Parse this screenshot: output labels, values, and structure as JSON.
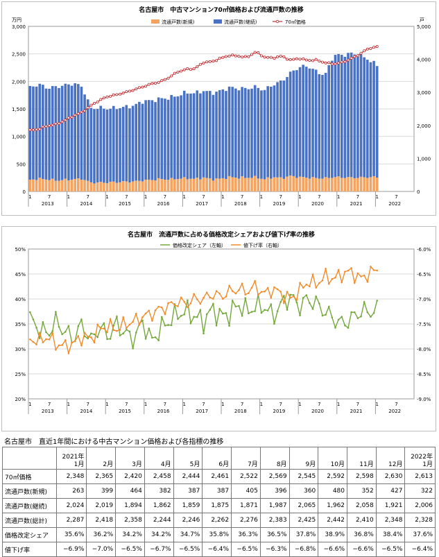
{
  "chart_data": [
    {
      "type": "bar",
      "title": "名古屋市　中古マンション70㎡価格および流通戸数の推移",
      "ylabel_left": "万円",
      "ylabel_right": "戸",
      "ylim_left": [
        0,
        3000
      ],
      "ylim_right": [
        0,
        5000
      ],
      "left_ticks": [
        "0",
        "500",
        "1,000",
        "1,500",
        "2,000",
        "2,500",
        "3,000"
      ],
      "right_ticks": [
        "0",
        "1,000",
        "2,000",
        "3,000",
        "4,000",
        "5,000"
      ],
      "x_month_labels": [
        "1",
        "7",
        "1",
        "7",
        "1",
        "7",
        "1",
        "7",
        "1",
        "7",
        "1",
        "7",
        "1",
        "7",
        "1",
        "7",
        "1",
        "7",
        "1",
        "7"
      ],
      "x_year_labels": [
        "2013",
        "2014",
        "2015",
        "2016",
        "2017",
        "2018",
        "2019",
        "2020",
        "2021",
        "2022"
      ],
      "legend": [
        "流通戸数(新規)",
        "流通戸数(継続)",
        "70㎡価格"
      ],
      "legend_position": "top-center",
      "colors": {
        "new": "#f4a460",
        "continuing": "#4a72c4",
        "price": "#c0282d"
      },
      "price_anchors": [
        1850,
        1890,
        1990,
        2030,
        2150,
        2290,
        2400,
        2600,
        2760,
        2880,
        2930,
        3000,
        3080,
        3170,
        3260,
        3320,
        3450,
        3620,
        3700,
        3720,
        3910,
        3930,
        4040,
        4120,
        4100,
        4060,
        4230,
        4070,
        4040,
        4100,
        3980,
        4030,
        3970,
        3980,
        3900,
        3860,
        3910,
        4020,
        4160,
        4330,
        4380
      ],
      "continuing_anchors": [
        1680,
        1720,
        1660,
        1700,
        1720,
        1740,
        1680,
        1350,
        1360,
        1340,
        1350,
        1360,
        1380,
        1440,
        1440,
        1460,
        1480,
        1510,
        1560,
        1560,
        1580,
        1570,
        1600,
        1630,
        1620,
        1620,
        1640,
        1620,
        1680,
        1760,
        1870,
        2000,
        2030,
        1940,
        1870,
        2220,
        2220,
        2260,
        2220,
        2140,
        2030
      ],
      "new_anchors": [
        210,
        230,
        220,
        200,
        210,
        220,
        230,
        160,
        160,
        165,
        170,
        175,
        180,
        200,
        210,
        225,
        220,
        230,
        240,
        225,
        250,
        220,
        230,
        260,
        250,
        250,
        260,
        220,
        260,
        240,
        280,
        260,
        250,
        240,
        240,
        260,
        255,
        250,
        250,
        260,
        260
      ]
    },
    {
      "type": "line",
      "title": "名古屋市　流通戸数に占める価格改定シェアおよび値下げ率の推移",
      "left_ticks": [
        "20%",
        "25%",
        "30%",
        "35%",
        "40%",
        "45%",
        "50%"
      ],
      "right_ticks": [
        "-9.0%",
        "-8.5%",
        "-8.0%",
        "-7.5%",
        "-7.0%",
        "-6.5%",
        "-6.0%"
      ],
      "ylim_left": [
        20,
        50
      ],
      "ylim_right": [
        -9.0,
        -6.0
      ],
      "x_month_labels": [
        "1",
        "7",
        "1",
        "7",
        "1",
        "7",
        "1",
        "7",
        "1",
        "7",
        "1",
        "7",
        "1",
        "7",
        "1",
        "7",
        "1",
        "7",
        "1",
        "7"
      ],
      "x_year_labels": [
        "2013",
        "2014",
        "2015",
        "2016",
        "2017",
        "2018",
        "2019",
        "2020",
        "2021",
        "2022"
      ],
      "legend": [
        "価格改定シェア（左軸）",
        "値下げ率（右軸）"
      ],
      "legend_position": "top-center",
      "colors": {
        "share": "#74a83a",
        "rate": "#f08c2a"
      },
      "share_anchors": [
        36.0,
        34.0,
        33.0,
        35.5,
        33.5,
        32.0,
        35.0,
        31.5,
        34.5,
        32.5,
        35.0,
        33.0,
        32.0,
        35.5,
        31.5,
        34.0,
        35.5,
        37.0,
        37.5,
        36.5,
        35.5,
        38.0,
        36.5,
        37.0,
        39.0,
        37.5,
        38.5,
        38.5,
        36.5,
        39.0,
        40.5,
        38.5,
        40.0,
        39.0,
        37.5,
        36.0,
        35.0,
        36.0,
        37.5,
        37.5,
        37.6
      ],
      "rate_anchors": [
        -7.8,
        -7.85,
        -7.75,
        -7.9,
        -7.95,
        -7.9,
        -7.75,
        -7.8,
        -7.6,
        -7.55,
        -7.6,
        -7.5,
        -7.45,
        -7.35,
        -7.3,
        -7.2,
        -7.15,
        -7.05,
        -7.1,
        -7.0,
        -7.0,
        -6.9,
        -6.95,
        -6.85,
        -6.8,
        -6.85,
        -6.75,
        -6.9,
        -6.8,
        -6.9,
        -7.0,
        -6.85,
        -6.65,
        -6.7,
        -6.55,
        -6.6,
        -6.5,
        -6.45,
        -6.6,
        -6.5,
        -6.4
      ]
    }
  ],
  "table": {
    "title": "名古屋市　直近1年間における中古マンション価格および各指標の推移",
    "header_year_first": "2021年",
    "header_year_last": "2022年",
    "columns": [
      "1月",
      "2月",
      "3月",
      "4月",
      "5月",
      "6月",
      "7月",
      "8月",
      "9月",
      "10月",
      "11月",
      "12月",
      "1月"
    ],
    "rows": [
      {
        "label": "70㎡価格",
        "values": [
          "2,348",
          "2,365",
          "2,420",
          "2,458",
          "2,444",
          "2,461",
          "2,522",
          "2,569",
          "2,545",
          "2,592",
          "2,598",
          "2,630",
          "2,613"
        ]
      },
      {
        "label": "流通戸数(新規)",
        "values": [
          "263",
          "399",
          "464",
          "382",
          "387",
          "387",
          "405",
          "396",
          "360",
          "480",
          "352",
          "427",
          "322"
        ]
      },
      {
        "label": "流通戸数(継続)",
        "values": [
          "2,024",
          "2,019",
          "1,894",
          "1,862",
          "1,859",
          "1,875",
          "1,871",
          "1,987",
          "2,065",
          "1,962",
          "2,058",
          "1,921",
          "2,006"
        ]
      },
      {
        "label": "流通戸数(総計)",
        "values": [
          "2,287",
          "2,418",
          "2,358",
          "2,244",
          "2,246",
          "2,262",
          "2,276",
          "2,383",
          "2,425",
          "2,442",
          "2,410",
          "2,348",
          "2,328"
        ]
      },
      {
        "label": "価格改定シェア",
        "values": [
          "35.6%",
          "36.2%",
          "34.2%",
          "34.2%",
          "34.7%",
          "35.8%",
          "36.3%",
          "36.5%",
          "37.8%",
          "38.9%",
          "36.8%",
          "38.4%",
          "37.6%"
        ]
      },
      {
        "label": "値下げ率",
        "values": [
          "−6.9%",
          "−7.0%",
          "−6.5%",
          "−6.7%",
          "−6.5%",
          "−6.4%",
          "−6.5%",
          "−6.3%",
          "−6.8%",
          "−6.6%",
          "−6.6%",
          "−6.5%",
          "−6.4%"
        ]
      }
    ]
  }
}
